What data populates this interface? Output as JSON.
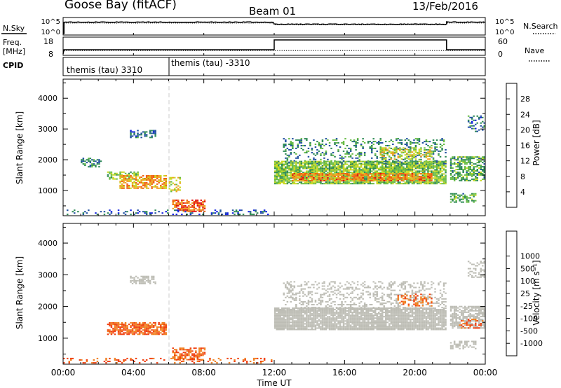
{
  "header": {
    "station": "Goose Bay (fitACF)",
    "beam": "Beam 01",
    "date": "13/Feb/2016"
  },
  "left_labels": {
    "nsky": "N.Sky",
    "freq_line1": "Freq.",
    "freq_line2": "[MHz]",
    "cpid": "CPID"
  },
  "right_labels": {
    "nsearch": "N.Search",
    "nave": "Nave"
  },
  "noise_axis": {
    "top_left": "10^5",
    "bottom_left": "10^0",
    "top_right": "10^5",
    "bottom_right": "10^0"
  },
  "freq_axis": {
    "ticks_left": [
      "18",
      "8"
    ],
    "ticks_right": [
      "60",
      "0"
    ]
  },
  "cpid_segments": [
    {
      "label": "themis (tau) 3310"
    },
    {
      "label": "themis (tau) -3310"
    }
  ],
  "time_axis": {
    "label": "Time UT",
    "ticks": [
      "00:00",
      "04:00",
      "08:00",
      "12:00",
      "16:00",
      "20:00",
      "00:00"
    ]
  },
  "colors": {
    "power": [
      "#1020e0",
      "#2050a0",
      "#2e8a55",
      "#66bb44",
      "#c8d820",
      "#f0a020",
      "#f06010",
      "#e01010"
    ],
    "velocity": [
      "#e01010",
      "#f04010",
      "#f08020",
      "#f0b020",
      "#bdbdb5",
      "#bdbdb5",
      "#66bb44",
      "#2e8a55",
      "#2050a0",
      "#1020e0"
    ],
    "ground_scatter": "#bdbdb5"
  },
  "chart_data": [
    {
      "type": "line",
      "name": "noise",
      "title": "",
      "series": [
        {
          "name": "N.Sky",
          "style": "solid"
        },
        {
          "name": "N.Search",
          "style": "dotted"
        }
      ],
      "x_range_hours": [
        0,
        24
      ],
      "levels_log10": [
        {
          "from": 0.05,
          "to": 12.0,
          "sky": 3.9,
          "search": 3.6
        },
        {
          "from": 12.0,
          "to": 21.8,
          "sky": 3.2,
          "search": 3.0
        },
        {
          "from": 21.8,
          "to": 24.0,
          "sky": 3.9,
          "search": 3.6
        }
      ]
    },
    {
      "type": "line",
      "name": "frequency",
      "series": [
        {
          "name": "Freq. [MHz]",
          "style": "dotted",
          "levels": [
            {
              "from": 0.05,
              "to": 24,
              "value": 10.3
            }
          ]
        },
        {
          "name": "Nave",
          "style": "solid",
          "levels": [
            {
              "from": 0.05,
              "to": 12.0,
              "value": 17
            },
            {
              "from": 12.0,
              "to": 21.8,
              "value": 57
            },
            {
              "from": 21.8,
              "to": 24,
              "value": 17
            }
          ]
        }
      ],
      "y_left_range": [
        8,
        18
      ],
      "y_right_range": [
        0,
        60
      ]
    },
    {
      "type": "heatmap",
      "name": "power",
      "ylabel": "Slant Range [km]",
      "yticks": [
        "1000",
        "2000",
        "3000",
        "4000"
      ],
      "ylim": [
        180,
        4620
      ],
      "colorbar": {
        "label": "Power [dB]",
        "ticks": [
          "4",
          "8",
          "12",
          "16",
          "20",
          "24",
          "28"
        ],
        "range": [
          0,
          32
        ]
      },
      "regions": [
        {
          "t": [
            1.0,
            2.2
          ],
          "r": [
            1750,
            2050
          ],
          "v": 10,
          "density": 0.45
        },
        {
          "t": [
            2.5,
            4.3
          ],
          "r": [
            1350,
            1600
          ],
          "v": 14,
          "density": 0.55
        },
        {
          "t": [
            3.2,
            5.8
          ],
          "r": [
            1050,
            1500
          ],
          "v": 22,
          "density": 0.7
        },
        {
          "t": [
            3.8,
            5.2
          ],
          "r": [
            2700,
            2950
          ],
          "v": 8,
          "density": 0.5
        },
        {
          "t": [
            0.0,
            11.8
          ],
          "r": [
            200,
            350
          ],
          "v": 6,
          "density": 0.25
        },
        {
          "t": [
            6.2,
            8.0
          ],
          "r": [
            300,
            700
          ],
          "v": 26,
          "density": 0.65
        },
        {
          "t": [
            6.0,
            6.6
          ],
          "r": [
            900,
            1400
          ],
          "v": 18,
          "density": 0.45
        },
        {
          "t": [
            12.0,
            21.8
          ],
          "r": [
            1200,
            1950
          ],
          "v": 15,
          "density": 0.85
        },
        {
          "t": [
            12.5,
            21.8
          ],
          "r": [
            1850,
            2700
          ],
          "v": 10,
          "density": 0.25
        },
        {
          "t": [
            13.0,
            21.0
          ],
          "r": [
            1300,
            1550
          ],
          "v": 24,
          "density": 0.7
        },
        {
          "t": [
            18.0,
            21.0
          ],
          "r": [
            2000,
            2400
          ],
          "v": 18,
          "density": 0.45
        },
        {
          "t": [
            22.0,
            24.0
          ],
          "r": [
            1300,
            2100
          ],
          "v": 12,
          "density": 0.6
        },
        {
          "t": [
            22.0,
            23.5
          ],
          "r": [
            600,
            900
          ],
          "v": 12,
          "density": 0.55
        },
        {
          "t": [
            23.0,
            24.0
          ],
          "r": [
            2900,
            3400
          ],
          "v": 8,
          "density": 0.3
        }
      ]
    },
    {
      "type": "heatmap",
      "name": "velocity",
      "ylabel": "Slant Range [km]",
      "yticks": [
        "1000",
        "2000",
        "3000",
        "4000"
      ],
      "ylim": [
        180,
        4620
      ],
      "colorbar": {
        "label": "Velocity [m s⁻¹]",
        "ticks": [
          "-1000",
          "-500",
          "-100",
          "-25",
          "25",
          "100",
          "500",
          "1000"
        ]
      },
      "regions": [
        {
          "t": [
            2.5,
            5.8
          ],
          "r": [
            1100,
            1500
          ],
          "v": -300,
          "density": 0.75
        },
        {
          "t": [
            3.8,
            5.2
          ],
          "r": [
            2700,
            2950
          ],
          "v": 0,
          "density": 0.5
        },
        {
          "t": [
            0.0,
            11.8
          ],
          "r": [
            200,
            350
          ],
          "v": -300,
          "density": 0.22
        },
        {
          "t": [
            6.2,
            8.0
          ],
          "r": [
            300,
            700
          ],
          "v": -300,
          "density": 0.65
        },
        {
          "t": [
            12.0,
            21.8
          ],
          "r": [
            1250,
            1950
          ],
          "v": 0,
          "density": 0.9
        },
        {
          "t": [
            12.5,
            21.8
          ],
          "r": [
            1900,
            2800
          ],
          "v": 0,
          "density": 0.3
        },
        {
          "t": [
            19.0,
            21.0
          ],
          "r": [
            2000,
            2400
          ],
          "v": -300,
          "density": 0.35
        },
        {
          "t": [
            22.0,
            24.0
          ],
          "r": [
            1300,
            2000
          ],
          "v": 0,
          "density": 0.7
        },
        {
          "t": [
            22.5,
            24.0
          ],
          "r": [
            1300,
            1600
          ],
          "v": -300,
          "density": 0.35
        },
        {
          "t": [
            22.0,
            23.5
          ],
          "r": [
            650,
            900
          ],
          "v": 0,
          "density": 0.55
        },
        {
          "t": [
            23.0,
            24.0
          ],
          "r": [
            2900,
            3400
          ],
          "v": 0,
          "density": 0.3
        }
      ]
    }
  ]
}
